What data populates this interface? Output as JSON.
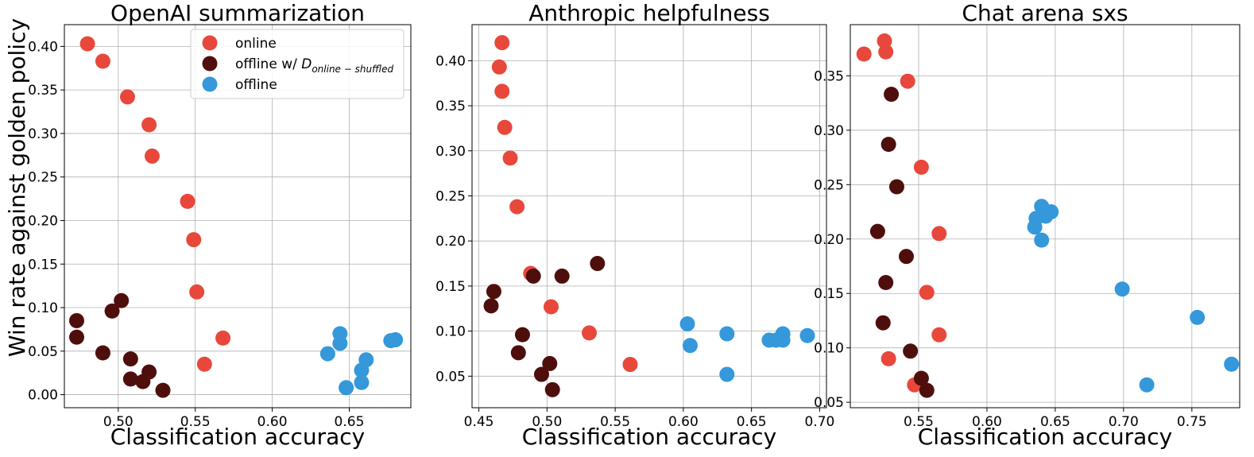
{
  "shared": {
    "ylabel": "Win rate against golden policy",
    "colors": {
      "online": "#e8483b",
      "offline_shuffled": "#4e0f0c",
      "offline": "#3498db"
    }
  },
  "legend": {
    "entries": [
      {
        "key": "online",
        "label": "online"
      },
      {
        "key": "offline_shuffled",
        "label": "offline w/ ",
        "math": "D",
        "sub": "online − shuffled"
      },
      {
        "key": "offline",
        "label": "offline"
      }
    ]
  },
  "chart_data": [
    {
      "type": "scatter",
      "title": "OpenAI summarization",
      "xlabel": "Classification accuracy",
      "ylabel": "Win rate against golden policy",
      "xlim": [
        0.465,
        0.69
      ],
      "ylim": [
        -0.015,
        0.425
      ],
      "xticks": [
        0.5,
        0.55,
        0.6,
        0.65
      ],
      "xtick_labels": [
        "0.50",
        "0.55",
        "0.60",
        "0.65"
      ],
      "yticks": [
        0.0,
        0.05,
        0.1,
        0.15,
        0.2,
        0.25,
        0.3,
        0.35,
        0.4
      ],
      "ytick_labels": [
        "0.00",
        "0.05",
        "0.10",
        "0.15",
        "0.20",
        "0.25",
        "0.30",
        "0.35",
        "0.40"
      ],
      "grid": true,
      "legend": "top-right",
      "series": [
        {
          "name": "online",
          "key": "online",
          "points": [
            [
              0.48,
              0.403
            ],
            [
              0.49,
              0.383
            ],
            [
              0.506,
              0.342
            ],
            [
              0.52,
              0.31
            ],
            [
              0.522,
              0.274
            ],
            [
              0.545,
              0.222
            ],
            [
              0.549,
              0.178
            ],
            [
              0.551,
              0.118
            ],
            [
              0.568,
              0.065
            ],
            [
              0.556,
              0.035
            ]
          ]
        },
        {
          "name": "offline w/ D online-shuffled",
          "key": "offline_shuffled",
          "points": [
            [
              0.473,
              0.085
            ],
            [
              0.473,
              0.066
            ],
            [
              0.496,
              0.096
            ],
            [
              0.502,
              0.108
            ],
            [
              0.49,
              0.048
            ],
            [
              0.508,
              0.041
            ],
            [
              0.508,
              0.018
            ],
            [
              0.516,
              0.015
            ],
            [
              0.52,
              0.026
            ],
            [
              0.529,
              0.005
            ]
          ]
        },
        {
          "name": "offline",
          "key": "offline",
          "points": [
            [
              0.636,
              0.047
            ],
            [
              0.644,
              0.07
            ],
            [
              0.644,
              0.059
            ],
            [
              0.648,
              0.008
            ],
            [
              0.658,
              0.028
            ],
            [
              0.658,
              0.014
            ],
            [
              0.661,
              0.04
            ],
            [
              0.677,
              0.062
            ],
            [
              0.68,
              0.063
            ]
          ]
        }
      ]
    },
    {
      "type": "scatter",
      "title": "Anthropic helpfulness",
      "xlabel": "Classification accuracy",
      "ylabel": "",
      "xlim": [
        0.445,
        0.705
      ],
      "ylim": [
        0.015,
        0.44
      ],
      "xticks": [
        0.45,
        0.5,
        0.55,
        0.6,
        0.65,
        0.7
      ],
      "xtick_labels": [
        "0.45",
        "0.50",
        "0.55",
        "0.60",
        "0.65",
        "0.70"
      ],
      "yticks": [
        0.05,
        0.1,
        0.15,
        0.2,
        0.25,
        0.3,
        0.35,
        0.4
      ],
      "ytick_labels": [
        "0.05",
        "0.10",
        "0.15",
        "0.20",
        "0.25",
        "0.30",
        "0.35",
        "0.40"
      ],
      "grid": true,
      "series": [
        {
          "name": "online",
          "key": "online",
          "points": [
            [
              0.467,
              0.42
            ],
            [
              0.465,
              0.393
            ],
            [
              0.467,
              0.366
            ],
            [
              0.469,
              0.326
            ],
            [
              0.473,
              0.292
            ],
            [
              0.478,
              0.238
            ],
            [
              0.488,
              0.164
            ],
            [
              0.503,
              0.127
            ],
            [
              0.531,
              0.098
            ],
            [
              0.561,
              0.063
            ]
          ]
        },
        {
          "name": "offline w/ D online-shuffled",
          "key": "offline_shuffled",
          "points": [
            [
              0.461,
              0.144
            ],
            [
              0.459,
              0.128
            ],
            [
              0.49,
              0.161
            ],
            [
              0.511,
              0.161
            ],
            [
              0.537,
              0.175
            ],
            [
              0.482,
              0.096
            ],
            [
              0.479,
              0.076
            ],
            [
              0.502,
              0.064
            ],
            [
              0.496,
              0.052
            ],
            [
              0.504,
              0.035
            ]
          ]
        },
        {
          "name": "offline",
          "key": "offline",
          "points": [
            [
              0.603,
              0.108
            ],
            [
              0.605,
              0.084
            ],
            [
              0.632,
              0.097
            ],
            [
              0.632,
              0.052
            ],
            [
              0.663,
              0.09
            ],
            [
              0.668,
              0.09
            ],
            [
              0.673,
              0.097
            ],
            [
              0.673,
              0.09
            ],
            [
              0.691,
              0.095
            ]
          ]
        }
      ]
    },
    {
      "type": "scatter",
      "title": "Chat arena sxs",
      "xlabel": "Classification accuracy",
      "ylabel": "",
      "xlim": [
        0.5,
        0.785
      ],
      "ylim": [
        0.045,
        0.397
      ],
      "xticks": [
        0.55,
        0.6,
        0.65,
        0.7,
        0.75
      ],
      "xtick_labels": [
        "0.55",
        "0.60",
        "0.65",
        "0.70",
        "0.75"
      ],
      "yticks": [
        0.05,
        0.1,
        0.15,
        0.2,
        0.25,
        0.3,
        0.35
      ],
      "ytick_labels": [
        "0.05",
        "0.10",
        "0.15",
        "0.20",
        "0.25",
        "0.30",
        "0.35"
      ],
      "grid": true,
      "series": [
        {
          "name": "online",
          "key": "online",
          "points": [
            [
              0.525,
              0.382
            ],
            [
              0.51,
              0.37
            ],
            [
              0.526,
              0.372
            ],
            [
              0.542,
              0.345
            ],
            [
              0.552,
              0.266
            ],
            [
              0.565,
              0.205
            ],
            [
              0.556,
              0.151
            ],
            [
              0.565,
              0.112
            ],
            [
              0.528,
              0.09
            ],
            [
              0.547,
              0.066
            ]
          ]
        },
        {
          "name": "offline w/ D online-shuffled",
          "key": "offline_shuffled",
          "points": [
            [
              0.53,
              0.333
            ],
            [
              0.528,
              0.287
            ],
            [
              0.534,
              0.248
            ],
            [
              0.52,
              0.207
            ],
            [
              0.541,
              0.184
            ],
            [
              0.526,
              0.16
            ],
            [
              0.524,
              0.123
            ],
            [
              0.544,
              0.097
            ],
            [
              0.552,
              0.072
            ],
            [
              0.556,
              0.061
            ]
          ]
        },
        {
          "name": "offline",
          "key": "offline",
          "points": [
            [
              0.64,
              0.23
            ],
            [
              0.647,
              0.225
            ],
            [
              0.643,
              0.221
            ],
            [
              0.636,
              0.219
            ],
            [
              0.635,
              0.211
            ],
            [
              0.64,
              0.199
            ],
            [
              0.699,
              0.154
            ],
            [
              0.754,
              0.128
            ],
            [
              0.717,
              0.066
            ],
            [
              0.779,
              0.085
            ]
          ]
        }
      ]
    }
  ]
}
